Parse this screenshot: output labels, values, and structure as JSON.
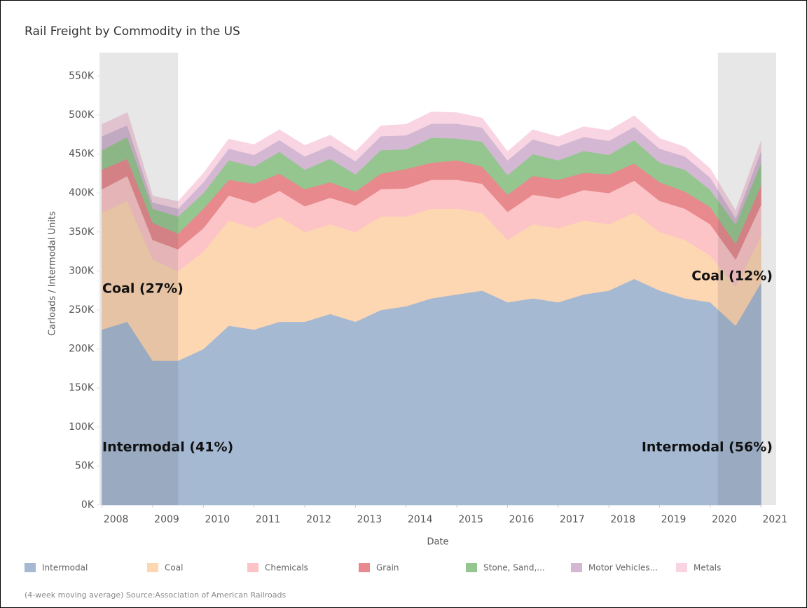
{
  "chart_data": {
    "type": "stacked_area",
    "title": "Rail Freight by Commodity in the US",
    "x_label": "Date",
    "y_label": "Carloads / Intermodal Units",
    "footnote": "(4-week moving average) Source:Association of American Railroads",
    "annotations": [
      "Coal (27%)",
      "Intermodal (41%)",
      "Coal (12%)",
      "Intermodal (56%)"
    ],
    "highlight_ranges": [
      [
        2007.95,
        2009.5
      ],
      [
        2020.15,
        2021.3
      ]
    ],
    "x": [
      2008.0,
      2008.5,
      2009.0,
      2009.5,
      2010.0,
      2010.5,
      2011.0,
      2011.5,
      2012.0,
      2012.5,
      2013.0,
      2013.5,
      2014.0,
      2014.5,
      2015.0,
      2015.5,
      2016.0,
      2016.5,
      2017.0,
      2017.5,
      2018.0,
      2018.5,
      2019.0,
      2019.5,
      2020.0,
      2020.5,
      2021.0
    ],
    "xlim": [
      2007.95,
      2021.3
    ],
    "xticks": [
      2008,
      2009,
      2010,
      2011,
      2012,
      2013,
      2014,
      2015,
      2016,
      2017,
      2018,
      2019,
      2020,
      2021
    ],
    "ylim": [
      0,
      580000
    ],
    "yticks": [
      {
        "value": 0,
        "label": "0K"
      },
      {
        "value": 50000,
        "label": "50K"
      },
      {
        "value": 100000,
        "label": "100K"
      },
      {
        "value": 150000,
        "label": "150K"
      },
      {
        "value": 200000,
        "label": "200K"
      },
      {
        "value": 250000,
        "label": "250K"
      },
      {
        "value": 300000,
        "label": "300K"
      },
      {
        "value": 350000,
        "label": "350K"
      },
      {
        "value": 400000,
        "label": "400K"
      },
      {
        "value": 450000,
        "label": "450K"
      },
      {
        "value": 500000,
        "label": "500K"
      },
      {
        "value": 550000,
        "label": "550K"
      }
    ],
    "series": [
      {
        "name": "Intermodal",
        "color": "#a5b9d3",
        "values": [
          225000,
          235000,
          185000,
          185000,
          200000,
          230000,
          225000,
          235000,
          235000,
          245000,
          235000,
          250000,
          255000,
          265000,
          270000,
          275000,
          260000,
          265000,
          260000,
          270000,
          275000,
          290000,
          275000,
          265000,
          260000,
          230000,
          285000
        ]
      },
      {
        "name": "Coal",
        "color": "#fdd6b2",
        "values": [
          150000,
          155000,
          130000,
          115000,
          125000,
          135000,
          130000,
          135000,
          115000,
          115000,
          115000,
          120000,
          115000,
          115000,
          110000,
          100000,
          80000,
          95000,
          95000,
          95000,
          85000,
          85000,
          75000,
          75000,
          60000,
          50000,
          60000
        ]
      },
      {
        "name": "Chemicals",
        "color": "#fcc4c6",
        "values": [
          30000,
          32000,
          25000,
          28000,
          30000,
          32000,
          32000,
          33000,
          33000,
          34000,
          34000,
          35000,
          36000,
          37000,
          37000,
          37000,
          36000,
          38000,
          38000,
          39000,
          40000,
          41000,
          40000,
          40000,
          40000,
          35000,
          40000
        ]
      },
      {
        "name": "Grain",
        "color": "#e8898d",
        "values": [
          25000,
          22000,
          22000,
          20000,
          25000,
          20000,
          25000,
          22000,
          22000,
          20000,
          18000,
          20000,
          25000,
          22000,
          25000,
          22000,
          22000,
          24000,
          24000,
          22000,
          24000,
          22000,
          24000,
          22000,
          22000,
          20000,
          25000
        ]
      },
      {
        "name": "Stone, Sand,...",
        "color": "#95c68f",
        "values": [
          25000,
          28000,
          18000,
          22000,
          20000,
          25000,
          22000,
          28000,
          25000,
          30000,
          22000,
          30000,
          25000,
          32000,
          28000,
          32000,
          25000,
          28000,
          25000,
          28000,
          25000,
          30000,
          25000,
          28000,
          22000,
          25000,
          28000
        ]
      },
      {
        "name": "Motor Vehicles...",
        "color": "#d3b7d3",
        "values": [
          18000,
          15000,
          8000,
          10000,
          14000,
          15000,
          15000,
          15000,
          17000,
          17000,
          17000,
          18000,
          18000,
          18000,
          19000,
          18000,
          19000,
          19000,
          18000,
          18000,
          18000,
          17000,
          18000,
          17000,
          16000,
          8000,
          16000
        ]
      },
      {
        "name": "Metals",
        "color": "#f9d5e3",
        "values": [
          15000,
          16000,
          8000,
          9000,
          11000,
          12000,
          13000,
          13000,
          14000,
          13000,
          12000,
          13000,
          14000,
          15000,
          14000,
          12000,
          11000,
          12000,
          12000,
          13000,
          13000,
          14000,
          13000,
          12000,
          11000,
          9000,
          12000
        ]
      }
    ]
  }
}
